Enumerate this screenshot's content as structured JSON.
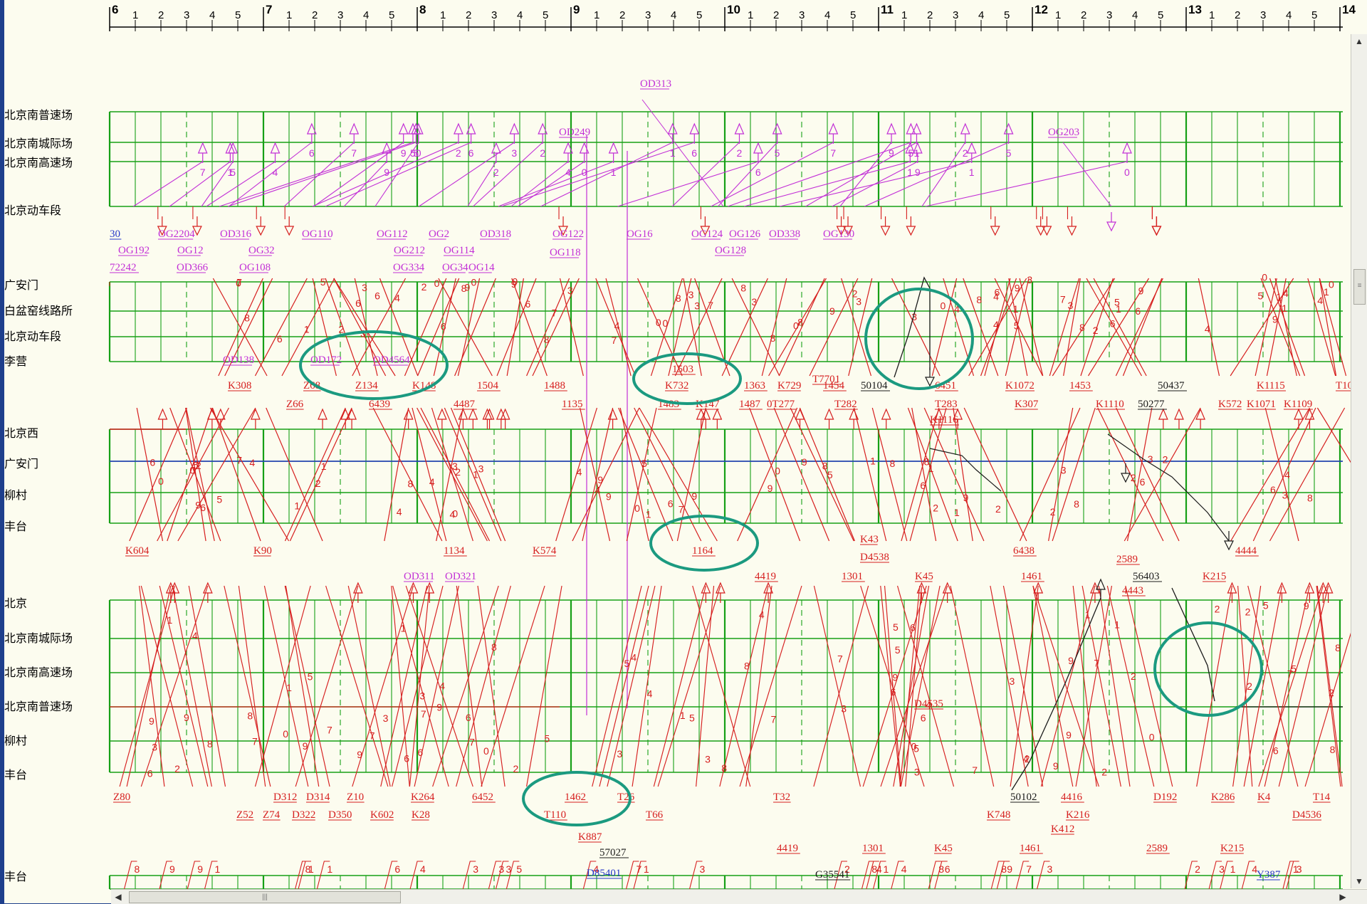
{
  "time_axis": {
    "hours": [
      "6",
      "7",
      "8",
      "9",
      "10",
      "11",
      "12",
      "13",
      "14"
    ],
    "subticks": [
      "1",
      "2",
      "3",
      "4",
      "5"
    ]
  },
  "panels": [
    {
      "stations": [
        "北京南普速场",
        "北京南城际场",
        "北京南高速场",
        "北京动车段"
      ]
    },
    {
      "stations": [
        "广安门",
        "白盆窑线路所",
        "北京动车段",
        "李营"
      ]
    },
    {
      "stations": [
        "北京西",
        "广安门",
        "柳村",
        "丰台"
      ]
    },
    {
      "stations": [
        "北京",
        "北京南城际场",
        "北京南高速场",
        "北京南普速场",
        "柳村",
        "丰台"
      ]
    },
    {
      "stations": [
        "丰台"
      ]
    }
  ],
  "train_labels": [
    "OD313",
    "OD249",
    "OG203",
    "OG2204",
    "OD316",
    "OG110",
    "OG112",
    "OG2",
    "OD318",
    "OG122",
    "OG16",
    "OG124",
    "OG126",
    "OD338",
    "OG130",
    "OG192",
    "OG12",
    "OG32",
    "OG212",
    "OG114",
    "OG118",
    "OG128",
    "OD366",
    "OG108",
    "OG334",
    "OG14",
    "OG34",
    "72242",
    "30",
    "OD138",
    "K308",
    "OD172",
    "OD4564",
    "Z66",
    "Z68",
    "Z134",
    "K148",
    "6439",
    "4487",
    "1504",
    "1488",
    "1135",
    "1503",
    "K732",
    "1483",
    "K147",
    "1363",
    "1487",
    "0T277",
    "K729",
    "T7701",
    "1454",
    "T282",
    "50104",
    "6451",
    "T283",
    "K1116",
    "K1072",
    "K307",
    "1453",
    "K1110",
    "50277",
    "50437",
    "K572",
    "K1115",
    "K1071",
    "K1109",
    "T10",
    "K604",
    "K90",
    "1134",
    "K574",
    "1164",
    "K43",
    "D4538",
    "6438",
    "4444",
    "OD311",
    "OD321",
    "4419",
    "1301",
    "K45",
    "1461",
    "2589",
    "56403",
    "4443",
    "K215",
    "Z80",
    "Z52",
    "Z74",
    "D312",
    "D322",
    "D314",
    "D350",
    "Z10",
    "K602",
    "K264",
    "K28",
    "6452",
    "1462",
    "T110",
    "T26",
    "T66",
    "T32",
    "D4535",
    "50102",
    "K748",
    "K412",
    "K216",
    "4416",
    "D192",
    "K286",
    "K4",
    "T14",
    "D4536",
    "K887",
    "57027",
    "D85401",
    "4419",
    "G35541",
    "1301",
    "K45",
    "1461",
    "2589",
    "K215",
    "Y387"
  ],
  "colors": {
    "background": "#fcfcef",
    "grid": "#16a016",
    "grid_dashed": "#16a016",
    "train_red": "#d61e1e",
    "train_magenta": "#c22fd6",
    "train_black": "#1b1b1b",
    "train_blue": "#2536c8",
    "highlight_circle": "#1b9a80",
    "side_bar": "#1e3f8c"
  }
}
